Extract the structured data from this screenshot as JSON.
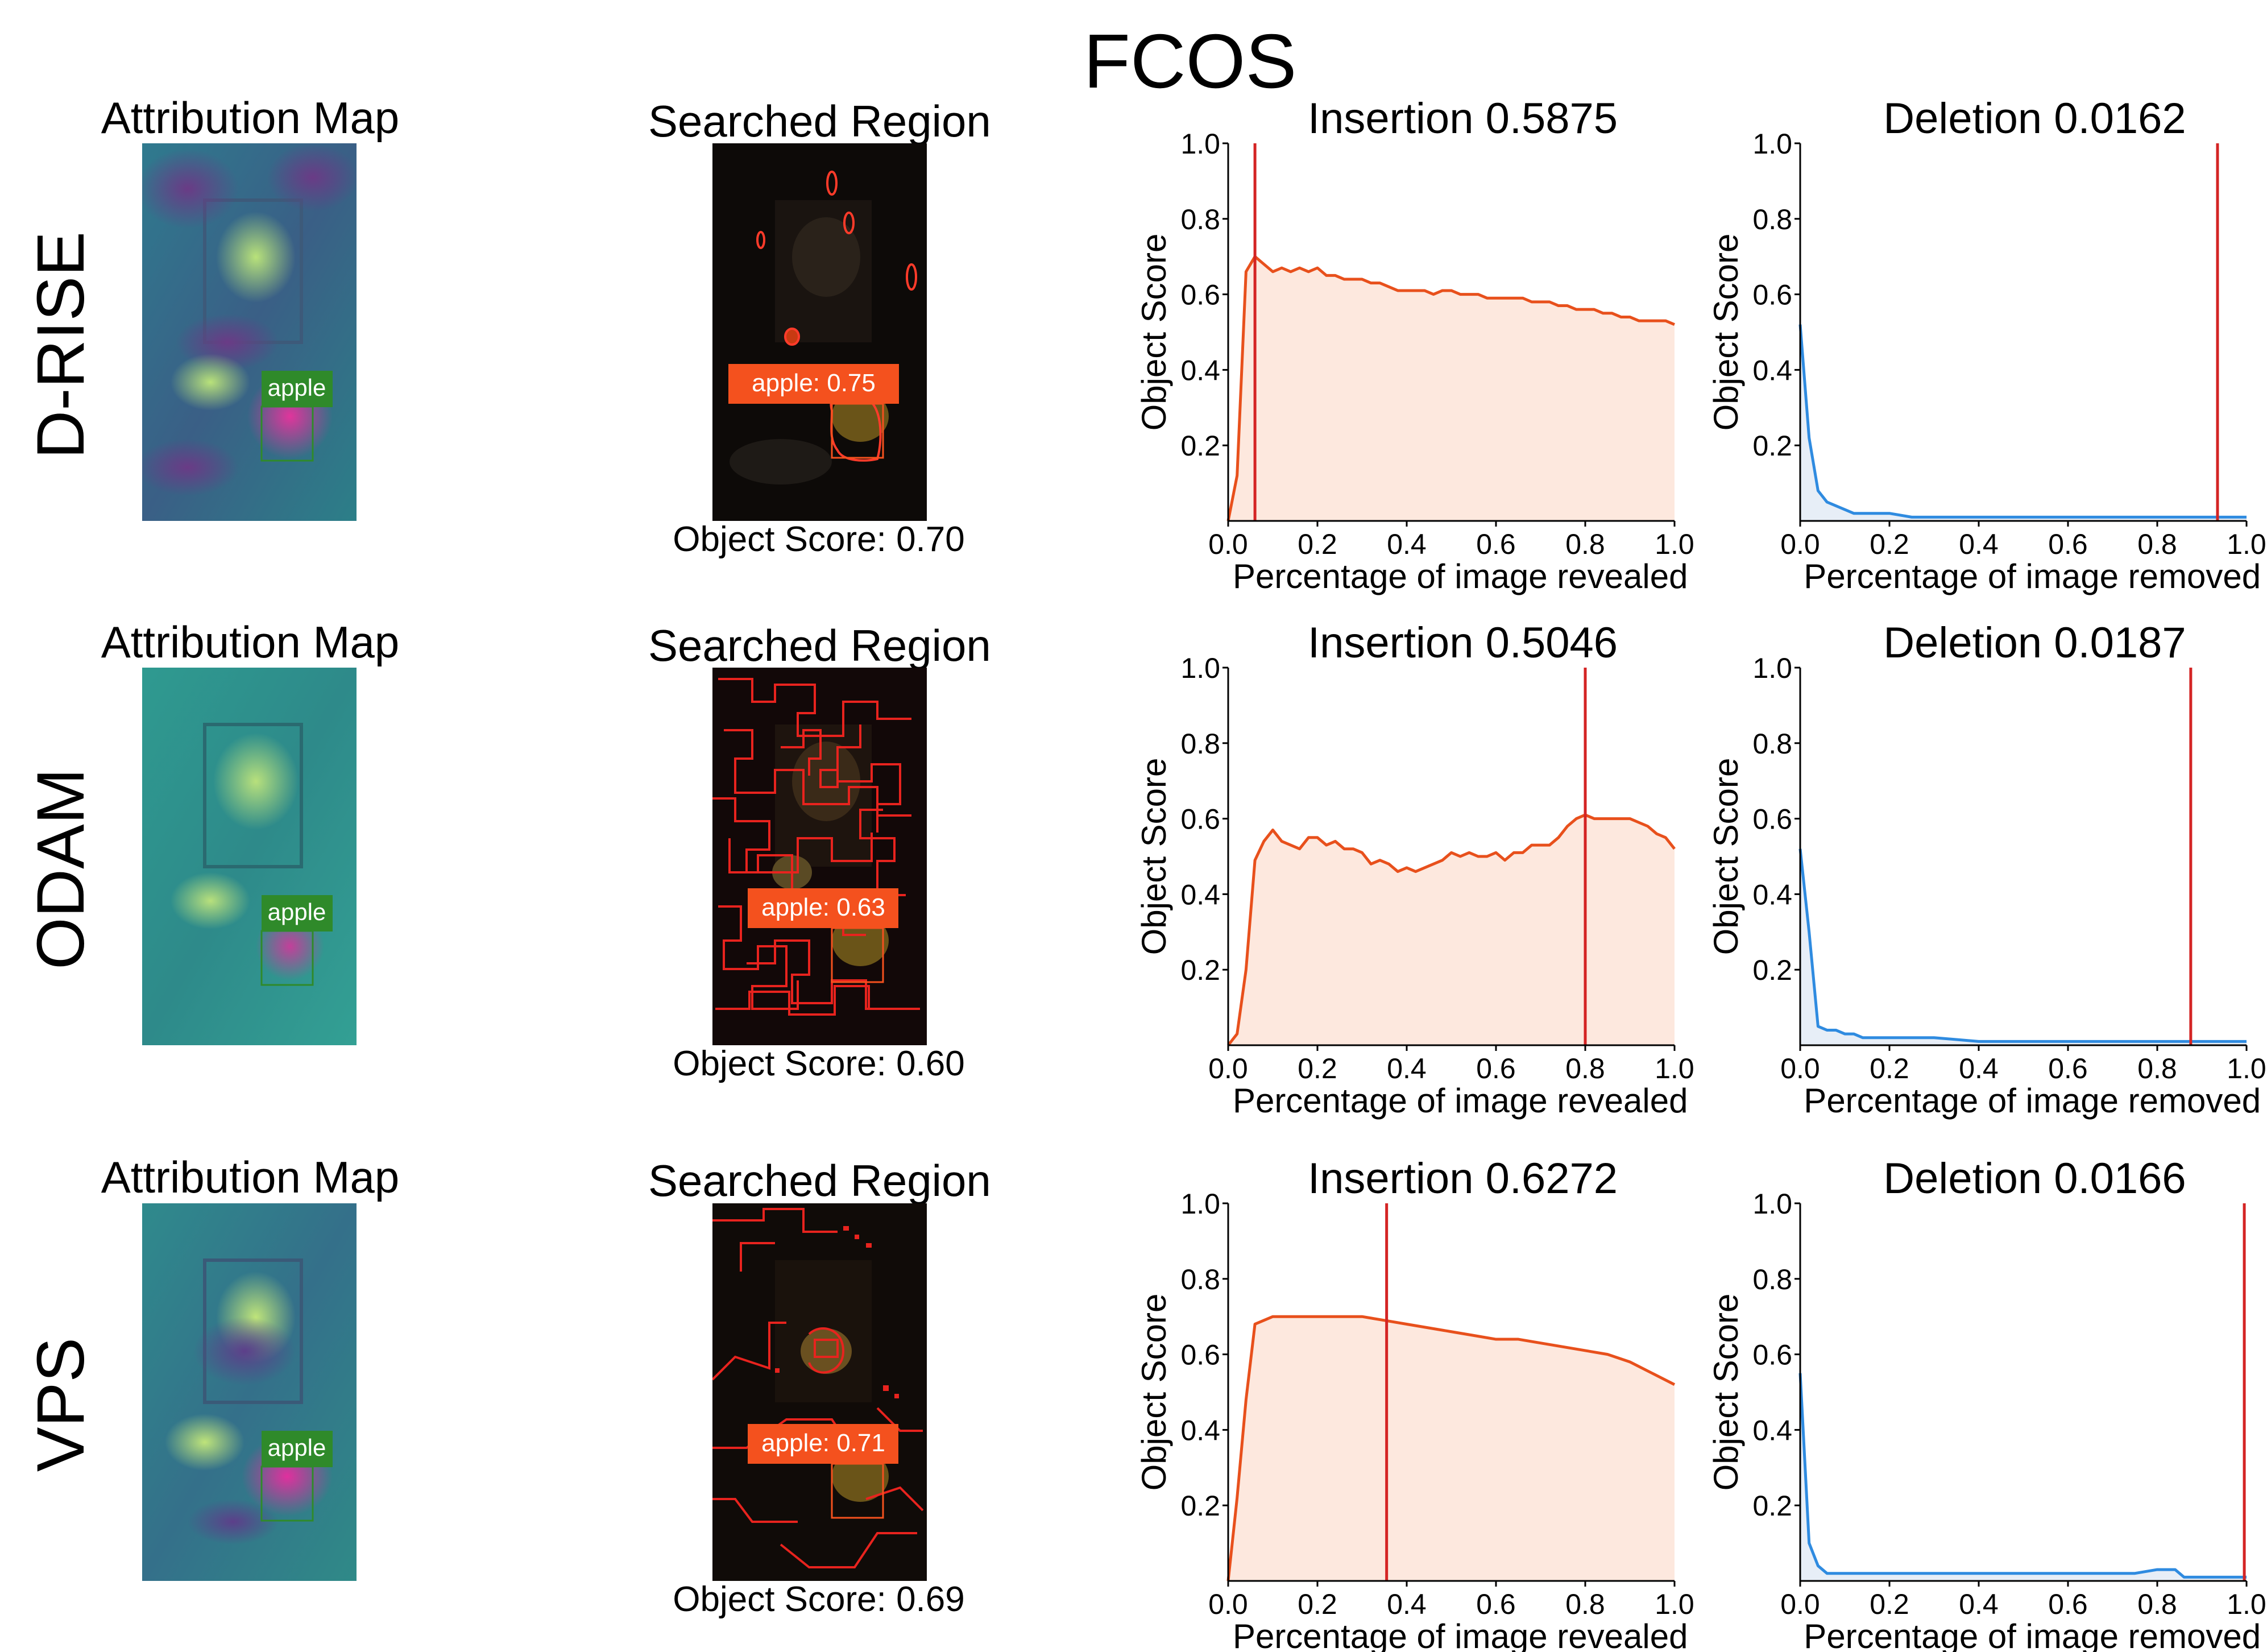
{
  "figure": {
    "title": "FCOS",
    "attribution_title": "Attribution Map",
    "searched_title": "Searched Region",
    "detection_label": "apple",
    "insertion_xlabel": "Percentage of image revealed",
    "deletion_xlabel": "Percentage of image removed",
    "ylabel": "Object Score",
    "colors": {
      "insertion_line": "#e8501c",
      "insertion_fill": "#fde8de",
      "deletion_line": "#2f8be0",
      "deletion_fill": "#e7eef7",
      "marker_line": "#d42424",
      "label_green": "#2f8a2a",
      "label_orange": "#f4511e"
    }
  },
  "rows": [
    {
      "method": "D-RISE",
      "object_score_caption": "Object Score: 0.70",
      "searched_label": "apple:  0.75"
    },
    {
      "method": "ODAM",
      "object_score_caption": "Object Score: 0.60",
      "searched_label": "apple:  0.63"
    },
    {
      "method": "VPS",
      "object_score_caption": "Object Score: 0.69",
      "searched_label": "apple:  0.71"
    }
  ],
  "chart_data": [
    {
      "type": "area",
      "title": "Insertion 0.5875",
      "xlabel": "Percentage of image revealed",
      "ylabel": "Object Score",
      "xlim": [
        0,
        1
      ],
      "ylim": [
        0,
        1
      ],
      "xticks": [
        "0.0",
        "0.2",
        "0.4",
        "0.6",
        "0.8",
        "1.0"
      ],
      "yticks": [
        "0.2",
        "0.4",
        "0.6",
        "0.8",
        "1.0"
      ],
      "marker_x": 0.06,
      "x": [
        0,
        0.02,
        0.04,
        0.06,
        0.08,
        0.1,
        0.12,
        0.14,
        0.16,
        0.18,
        0.2,
        0.22,
        0.24,
        0.26,
        0.28,
        0.3,
        0.32,
        0.34,
        0.36,
        0.38,
        0.4,
        0.42,
        0.44,
        0.46,
        0.48,
        0.5,
        0.52,
        0.54,
        0.56,
        0.58,
        0.6,
        0.62,
        0.64,
        0.66,
        0.68,
        0.7,
        0.72,
        0.74,
        0.76,
        0.78,
        0.8,
        0.82,
        0.84,
        0.86,
        0.88,
        0.9,
        0.92,
        0.94,
        0.96,
        0.98,
        1.0
      ],
      "y": [
        0,
        0.12,
        0.66,
        0.7,
        0.68,
        0.66,
        0.67,
        0.66,
        0.67,
        0.66,
        0.67,
        0.65,
        0.65,
        0.64,
        0.64,
        0.64,
        0.63,
        0.63,
        0.62,
        0.61,
        0.61,
        0.61,
        0.61,
        0.6,
        0.61,
        0.61,
        0.6,
        0.6,
        0.6,
        0.59,
        0.59,
        0.59,
        0.59,
        0.59,
        0.58,
        0.58,
        0.58,
        0.57,
        0.57,
        0.56,
        0.56,
        0.56,
        0.55,
        0.55,
        0.54,
        0.54,
        0.53,
        0.53,
        0.53,
        0.53,
        0.52
      ]
    },
    {
      "type": "area",
      "title": "Deletion 0.0162",
      "xlabel": "Percentage of image removed",
      "ylabel": "Object Score",
      "xlim": [
        0,
        1
      ],
      "ylim": [
        0,
        1
      ],
      "xticks": [
        "0.0",
        "0.2",
        "0.4",
        "0.6",
        "0.8",
        "1.0"
      ],
      "yticks": [
        "0.2",
        "0.4",
        "0.6",
        "0.8",
        "1.0"
      ],
      "marker_x": 0.935,
      "x": [
        0,
        0.02,
        0.04,
        0.06,
        0.08,
        0.1,
        0.12,
        0.14,
        0.16,
        0.18,
        0.2,
        0.25,
        0.3,
        0.4,
        0.5,
        0.6,
        0.7,
        0.8,
        0.9,
        1.0
      ],
      "y": [
        0.52,
        0.22,
        0.08,
        0.05,
        0.04,
        0.03,
        0.02,
        0.02,
        0.02,
        0.02,
        0.02,
        0.01,
        0.01,
        0.01,
        0.01,
        0.01,
        0.01,
        0.01,
        0.01,
        0.01
      ]
    },
    {
      "type": "area",
      "title": "Insertion 0.5046",
      "xlabel": "Percentage of image revealed",
      "ylabel": "Object Score",
      "xlim": [
        0,
        1
      ],
      "ylim": [
        0,
        1
      ],
      "xticks": [
        "0.0",
        "0.2",
        "0.4",
        "0.6",
        "0.8",
        "1.0"
      ],
      "yticks": [
        "0.2",
        "0.4",
        "0.6",
        "0.8",
        "1.0"
      ],
      "marker_x": 0.8,
      "x": [
        0,
        0.02,
        0.04,
        0.06,
        0.08,
        0.1,
        0.12,
        0.14,
        0.16,
        0.18,
        0.2,
        0.22,
        0.24,
        0.26,
        0.28,
        0.3,
        0.32,
        0.34,
        0.36,
        0.38,
        0.4,
        0.42,
        0.44,
        0.46,
        0.48,
        0.5,
        0.52,
        0.54,
        0.56,
        0.58,
        0.6,
        0.62,
        0.64,
        0.66,
        0.68,
        0.7,
        0.72,
        0.74,
        0.76,
        0.78,
        0.8,
        0.82,
        0.84,
        0.86,
        0.88,
        0.9,
        0.92,
        0.94,
        0.96,
        0.98,
        1.0
      ],
      "y": [
        0,
        0.03,
        0.2,
        0.49,
        0.54,
        0.57,
        0.54,
        0.53,
        0.52,
        0.55,
        0.55,
        0.53,
        0.54,
        0.52,
        0.52,
        0.51,
        0.48,
        0.49,
        0.48,
        0.46,
        0.47,
        0.46,
        0.47,
        0.48,
        0.49,
        0.51,
        0.5,
        0.51,
        0.5,
        0.5,
        0.51,
        0.49,
        0.51,
        0.51,
        0.53,
        0.53,
        0.53,
        0.55,
        0.58,
        0.6,
        0.61,
        0.6,
        0.6,
        0.6,
        0.6,
        0.6,
        0.59,
        0.58,
        0.56,
        0.55,
        0.52
      ]
    },
    {
      "type": "area",
      "title": "Deletion 0.0187",
      "xlabel": "Percentage of image removed",
      "ylabel": "Object Score",
      "xlim": [
        0,
        1
      ],
      "ylim": [
        0,
        1
      ],
      "xticks": [
        "0.0",
        "0.2",
        "0.4",
        "0.6",
        "0.8",
        "1.0"
      ],
      "yticks": [
        "0.2",
        "0.4",
        "0.6",
        "0.8",
        "1.0"
      ],
      "marker_x": 0.875,
      "x": [
        0,
        0.02,
        0.04,
        0.06,
        0.08,
        0.1,
        0.12,
        0.14,
        0.16,
        0.18,
        0.2,
        0.25,
        0.3,
        0.4,
        0.5,
        0.6,
        0.7,
        0.8,
        0.9,
        1.0
      ],
      "y": [
        0.52,
        0.3,
        0.05,
        0.04,
        0.04,
        0.03,
        0.03,
        0.02,
        0.02,
        0.02,
        0.02,
        0.02,
        0.02,
        0.01,
        0.01,
        0.01,
        0.01,
        0.01,
        0.01,
        0.01
      ]
    },
    {
      "type": "area",
      "title": "Insertion 0.6272",
      "xlabel": "Percentage of image revealed",
      "ylabel": "Object Score",
      "xlim": [
        0,
        1
      ],
      "ylim": [
        0,
        1
      ],
      "xticks": [
        "0.0",
        "0.2",
        "0.4",
        "0.6",
        "0.8",
        "1.0"
      ],
      "yticks": [
        "0.2",
        "0.4",
        "0.6",
        "0.8",
        "1.0"
      ],
      "marker_x": 0.355,
      "x": [
        0,
        0.02,
        0.04,
        0.06,
        0.08,
        0.1,
        0.15,
        0.2,
        0.25,
        0.3,
        0.35,
        0.4,
        0.45,
        0.5,
        0.55,
        0.6,
        0.65,
        0.7,
        0.75,
        0.8,
        0.85,
        0.9,
        0.95,
        1.0
      ],
      "y": [
        0,
        0.22,
        0.48,
        0.68,
        0.69,
        0.7,
        0.7,
        0.7,
        0.7,
        0.7,
        0.69,
        0.68,
        0.67,
        0.66,
        0.65,
        0.64,
        0.64,
        0.63,
        0.62,
        0.61,
        0.6,
        0.58,
        0.55,
        0.52
      ]
    },
    {
      "type": "area",
      "title": "Deletion 0.0166",
      "xlabel": "Percentage of image removed",
      "ylabel": "Object Score",
      "xlim": [
        0,
        1
      ],
      "ylim": [
        0,
        1
      ],
      "xticks": [
        "0.0",
        "0.2",
        "0.4",
        "0.6",
        "0.8",
        "1.0"
      ],
      "yticks": [
        "0.2",
        "0.4",
        "0.6",
        "0.8",
        "1.0"
      ],
      "marker_x": 0.995,
      "x": [
        0,
        0.02,
        0.04,
        0.06,
        0.08,
        0.1,
        0.15,
        0.2,
        0.3,
        0.4,
        0.5,
        0.6,
        0.7,
        0.75,
        0.8,
        0.82,
        0.84,
        0.86,
        0.9,
        0.95,
        1.0
      ],
      "y": [
        0.55,
        0.1,
        0.04,
        0.02,
        0.02,
        0.02,
        0.02,
        0.02,
        0.02,
        0.02,
        0.02,
        0.02,
        0.02,
        0.02,
        0.03,
        0.03,
        0.03,
        0.01,
        0.01,
        0.01,
        0.01
      ]
    }
  ]
}
